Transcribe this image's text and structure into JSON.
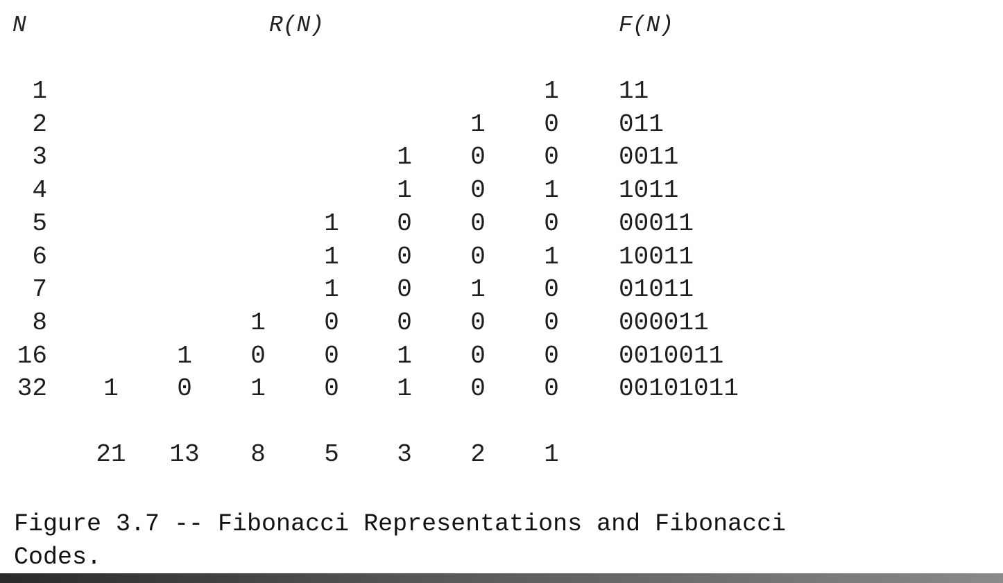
{
  "headers": {
    "n": "N",
    "r": "R(N)",
    "f": "F(N)"
  },
  "rows": [
    {
      "n": "1",
      "bits": [
        "",
        "",
        "",
        "",
        "",
        "",
        "1"
      ],
      "code": "11"
    },
    {
      "n": "2",
      "bits": [
        "",
        "",
        "",
        "",
        "",
        "1",
        "0"
      ],
      "code": "011"
    },
    {
      "n": "3",
      "bits": [
        "",
        "",
        "",
        "",
        "1",
        "0",
        "0"
      ],
      "code": "0011"
    },
    {
      "n": "4",
      "bits": [
        "",
        "",
        "",
        "",
        "1",
        "0",
        "1"
      ],
      "code": "1011"
    },
    {
      "n": "5",
      "bits": [
        "",
        "",
        "",
        "1",
        "0",
        "0",
        "0"
      ],
      "code": "00011"
    },
    {
      "n": "6",
      "bits": [
        "",
        "",
        "",
        "1",
        "0",
        "0",
        "1"
      ],
      "code": "10011"
    },
    {
      "n": "7",
      "bits": [
        "",
        "",
        "",
        "1",
        "0",
        "1",
        "0"
      ],
      "code": "01011"
    },
    {
      "n": "8",
      "bits": [
        "",
        "",
        "1",
        "0",
        "0",
        "0",
        "0"
      ],
      "code": "000011"
    },
    {
      "n": "16",
      "bits": [
        "",
        "1",
        "0",
        "0",
        "1",
        "0",
        "0"
      ],
      "code": "0010011"
    },
    {
      "n": "32",
      "bits": [
        "1",
        "0",
        "1",
        "0",
        "1",
        "0",
        "0"
      ],
      "code": "00101011"
    }
  ],
  "weights": [
    "21",
    "13",
    "8",
    "5",
    "3",
    "2",
    "1"
  ],
  "caption": "Figure 3.7 -- Fibonacci Representations and Fibonacci\nCodes."
}
